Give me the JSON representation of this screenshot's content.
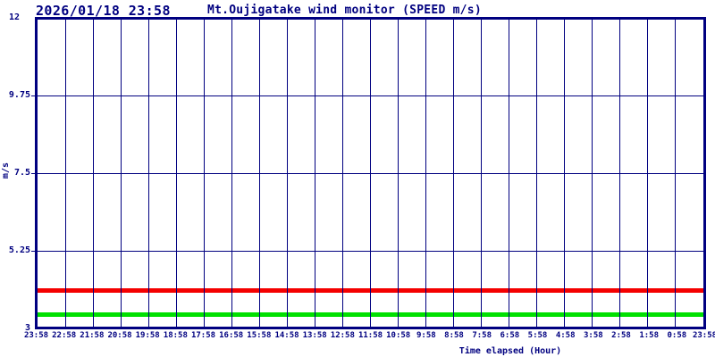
{
  "header": {
    "datetime": "2026/01/18 23:58",
    "title": "Mt.Oujigatake wind monitor (SPEED m/s)"
  },
  "chart_data": {
    "type": "line",
    "title": "Mt.Oujigatake wind monitor (SPEED m/s)",
    "datetime_label": "2026/01/18 23:58",
    "xlabel": "Time elapsed (Hour)",
    "ylabel": "m/s",
    "ylim": [
      3,
      12
    ],
    "grid": true,
    "yticks": [
      {
        "label": "12",
        "value": 12,
        "gridline": false,
        "tickmark": false
      },
      {
        "label": "9.75",
        "value": 9.75,
        "gridline": true,
        "tickmark": true
      },
      {
        "label": "7.5",
        "value": 7.5,
        "gridline": true,
        "tickmark": true
      },
      {
        "label": "5.25",
        "value": 5.25,
        "gridline": true,
        "tickmark": true
      },
      {
        "label": "3",
        "value": 3,
        "gridline": false,
        "tickmark": false
      }
    ],
    "xtick_labels": [
      "23:58",
      "22:58",
      "21:58",
      "20:58",
      "19:58",
      "18:58",
      "17:58",
      "16:58",
      "15:58",
      "14:58",
      "13:58",
      "12:58",
      "11:58",
      "10:58",
      "9:58",
      "8:58",
      "7:58",
      "6:58",
      "5:58",
      "4:58",
      "3:58",
      "2:58",
      "1:58",
      "0:58",
      "23:58"
    ],
    "series": [
      {
        "name": "speed-red-line",
        "color": "#f40000",
        "style": "horizontal-constant",
        "value": 4.1
      },
      {
        "name": "speed-green-line",
        "color": "#00e000",
        "style": "horizontal-constant",
        "value": 3.4
      }
    ],
    "colors": {
      "axis": "#000080",
      "text": "#000080",
      "background": "#ffffff"
    }
  }
}
